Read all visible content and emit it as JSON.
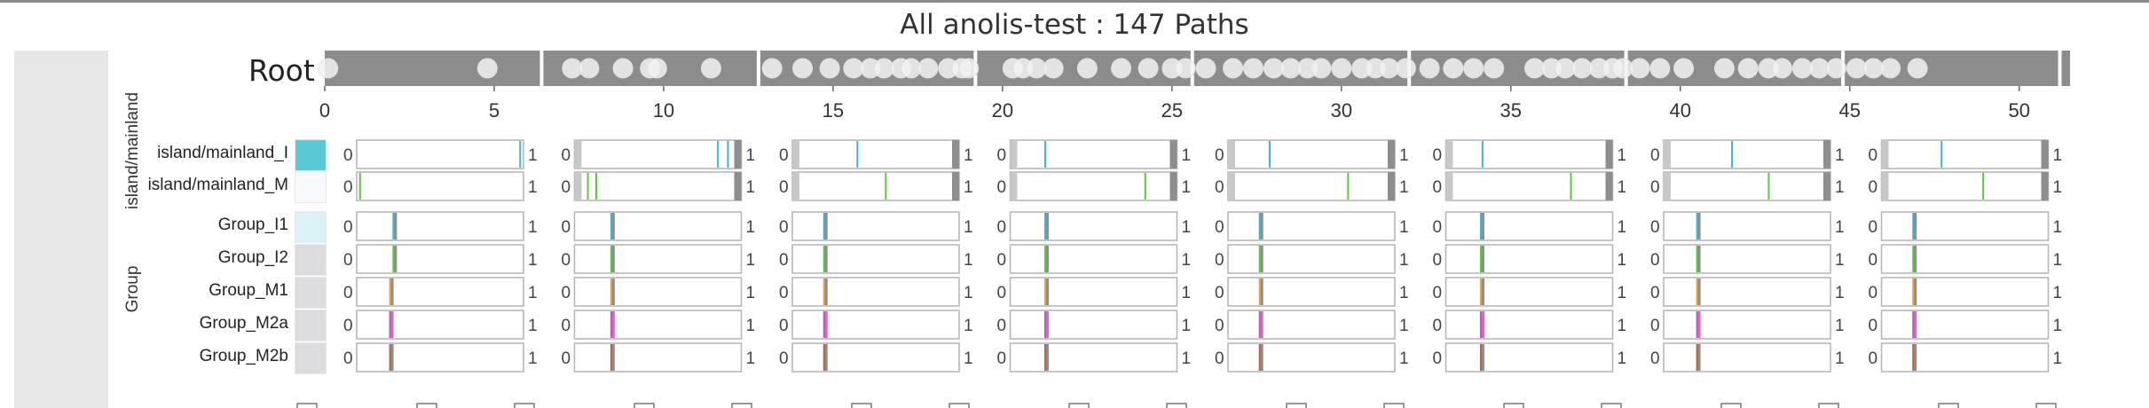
{
  "title": "All anolis-test : 147 Paths",
  "root_label": "Root",
  "axis": {
    "min": 0,
    "max": 51.5,
    "ticks": [
      0,
      5,
      10,
      15,
      20,
      25,
      30,
      35,
      40,
      45,
      50
    ],
    "breaks": [
      6.4,
      12.8,
      19.2,
      25.6,
      32.0,
      38.4,
      44.8,
      51.2
    ]
  },
  "root_points": [
    0.1,
    4.8,
    7.3,
    7.8,
    8.8,
    9.6,
    9.8,
    11.4,
    13.2,
    14.1,
    14.9,
    15.6,
    16.1,
    16.5,
    17.0,
    17.3,
    17.8,
    18.4,
    18.8,
    19.0,
    20.3,
    20.6,
    21.0,
    21.5,
    22.5,
    23.5,
    24.3,
    25.0,
    25.4,
    26.0,
    26.8,
    27.4,
    28.0,
    28.5,
    29.0,
    29.4,
    30.0,
    30.6,
    31.0,
    31.4,
    31.9,
    32.6,
    33.3,
    33.9,
    34.5,
    35.7,
    36.2,
    36.6,
    37.1,
    37.6,
    38.0,
    38.3,
    38.8,
    39.4,
    40.1,
    41.3,
    42.0,
    42.6,
    43.0,
    43.6,
    44.1,
    44.6,
    45.2,
    45.7,
    46.2,
    47.0
  ],
  "factors": [
    {
      "name": "island/mainland",
      "rows": [
        "island/mainland_I",
        "island/mainland_M"
      ]
    },
    {
      "name": "Group",
      "rows": [
        "Group_I1",
        "Group_I2",
        "Group_M1",
        "Group_M2a",
        "Group_M2b"
      ]
    }
  ],
  "row_colors": {
    "island/mainland_I": "#5bc8d6",
    "island/mainland_M": "#f7fafb",
    "Group_I1": "#daf1f6",
    "Group_I2": "#dcdcde",
    "Group_M1": "#dcdcde",
    "Group_M2a": "#dcdcde",
    "Group_M2b": "#dcdcde"
  },
  "scale_labels": {
    "min": "0",
    "max": "1"
  },
  "colors": {
    "cyan": "#3fb6cf",
    "green": "#59c83a",
    "orange": "#e6a43a",
    "purple": "#b55cc8",
    "pink": "#e06aa8",
    "brown": "#b06a43",
    "gray": "#8e8e8e",
    "lightgray": "#c8c8c8"
  },
  "panels": [
    {
      "rows": {
        "island/mainland_I": [
          0.98
        ],
        "island/mainland_M": [
          0.02
        ],
        "Group_I1": [
          0.22
        ],
        "Group_I2": [
          0.22
        ],
        "Group_M1": [
          0.2
        ],
        "Group_M2a": [
          0.2
        ],
        "Group_M2b": [
          0.2
        ]
      }
    },
    {
      "rows": {
        "island/mainland_I": [
          0.86,
          0.92
        ],
        "island/mainland_M": [
          0.08,
          0.13
        ],
        "Group_I1": [
          0.22
        ],
        "Group_I2": [
          0.22
        ],
        "Group_M1": [
          0.22
        ],
        "Group_M2a": [
          0.22
        ],
        "Group_M2b": [
          0.22
        ]
      }
    },
    {
      "rows": {
        "island/mainland_I": [
          0.39
        ],
        "island/mainland_M": [
          0.56
        ],
        "Group_I1": [
          0.19
        ],
        "Group_I2": [
          0.19
        ],
        "Group_M1": [
          0.19
        ],
        "Group_M2a": [
          0.19
        ],
        "Group_M2b": [
          0.19
        ]
      }
    },
    {
      "rows": {
        "island/mainland_I": [
          0.21
        ],
        "island/mainland_M": [
          0.81
        ],
        "Group_I1": [
          0.21
        ],
        "Group_I2": [
          0.21
        ],
        "Group_M1": [
          0.21
        ],
        "Group_M2a": [
          0.21
        ],
        "Group_M2b": [
          0.21
        ]
      }
    },
    {
      "rows": {
        "island/mainland_I": [
          0.25
        ],
        "island/mainland_M": [
          0.72
        ],
        "Group_I1": [
          0.19
        ],
        "Group_I2": [
          0.19
        ],
        "Group_M1": [
          0.19
        ],
        "Group_M2a": [
          0.19
        ],
        "Group_M2b": [
          0.19
        ]
      }
    },
    {
      "rows": {
        "island/mainland_I": [
          0.22
        ],
        "island/mainland_M": [
          0.75
        ],
        "Group_I1": [
          0.21
        ],
        "Group_I2": [
          0.21
        ],
        "Group_M1": [
          0.21
        ],
        "Group_M2a": [
          0.21
        ],
        "Group_M2b": [
          0.21
        ]
      }
    },
    {
      "rows": {
        "island/mainland_I": [
          0.41
        ],
        "island/mainland_M": [
          0.63
        ],
        "Group_I1": [
          0.2
        ],
        "Group_I2": [
          0.2
        ],
        "Group_M1": [
          0.2
        ],
        "Group_M2a": [
          0.2
        ],
        "Group_M2b": [
          0.2
        ]
      }
    },
    {
      "rows": {
        "island/mainland_I": [
          0.36
        ],
        "island/mainland_M": [
          0.61
        ],
        "Group_I1": [
          0.19
        ],
        "Group_I2": [
          0.19
        ],
        "Group_M1": [
          0.19
        ],
        "Group_M2a": [
          0.19
        ],
        "Group_M2b": [
          0.19
        ]
      }
    }
  ],
  "row_palettes": {
    "island/mainland_I": [
      "cyan"
    ],
    "island/mainland_M": [
      "green"
    ],
    "Group_I1": [
      "cyan",
      "gray"
    ],
    "Group_I2": [
      "green",
      "gray"
    ],
    "Group_M1": [
      "orange",
      "gray"
    ],
    "Group_M2a": [
      "purple",
      "pink"
    ],
    "Group_M2b": [
      "brown",
      "gray"
    ]
  }
}
